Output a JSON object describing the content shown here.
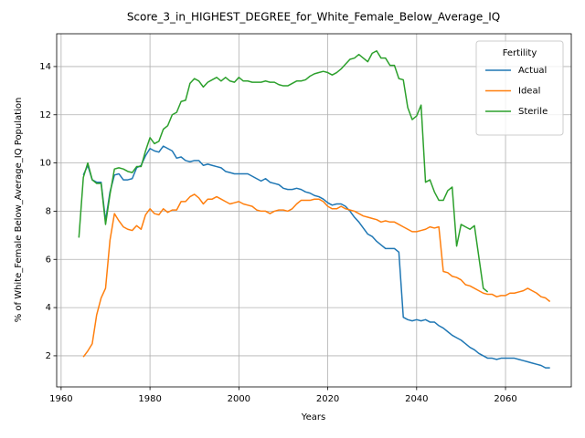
{
  "chart_data": {
    "type": "line",
    "title": "Score_3_in_HIGHEST_DEGREE_for_White_Female_Below_Average_IQ",
    "x_label": "Years",
    "y_label": "% of White_Female Below_Average_IQ Population",
    "legend_title": "Fertility",
    "legend_position": "upper right",
    "grid": true,
    "xlim": [
      1959,
      2074.8
    ],
    "ylim": [
      0.71,
      15.36
    ],
    "xticks": [
      1960,
      1980,
      2000,
      2020,
      2040,
      2060
    ],
    "yticks": [
      2,
      4,
      6,
      8,
      10,
      12,
      14
    ],
    "x": [
      1964,
      1965,
      1966,
      1967,
      1968,
      1969,
      1970,
      1971,
      1972,
      1973,
      1974,
      1975,
      1976,
      1977,
      1978,
      1979,
      1980,
      1981,
      1982,
      1983,
      1984,
      1985,
      1986,
      1987,
      1988,
      1989,
      1990,
      1991,
      1992,
      1993,
      1994,
      1995,
      1996,
      1997,
      1998,
      1999,
      2000,
      2001,
      2002,
      2003,
      2004,
      2005,
      2006,
      2007,
      2008,
      2009,
      2010,
      2011,
      2012,
      2013,
      2014,
      2015,
      2016,
      2017,
      2018,
      2019,
      2020,
      2021,
      2022,
      2023,
      2024,
      2025,
      2026,
      2027,
      2028,
      2029,
      2030,
      2031,
      2032,
      2033,
      2034,
      2035,
      2036,
      2037,
      2038,
      2039,
      2040,
      2041,
      2042,
      2043,
      2044,
      2045,
      2046,
      2047,
      2048,
      2049,
      2050,
      2051,
      2052,
      2053,
      2054,
      2055,
      2056,
      2057,
      2058,
      2059,
      2060,
      2061,
      2062,
      2063,
      2064,
      2065,
      2066,
      2067,
      2068,
      2069,
      2070
    ],
    "series": [
      {
        "name": "Actual",
        "color": "#1f77b4",
        "values": [
          null,
          9.5,
          9.9,
          9.3,
          9.2,
          9.2,
          7.6,
          8.8,
          9.5,
          9.55,
          9.3,
          9.3,
          9.35,
          9.8,
          9.9,
          10.3,
          10.6,
          10.5,
          10.45,
          10.7,
          10.6,
          10.5,
          10.2,
          10.25,
          10.1,
          10.05,
          10.1,
          10.1,
          9.9,
          9.95,
          9.9,
          9.85,
          9.8,
          9.65,
          9.6,
          9.55,
          9.55,
          9.55,
          9.55,
          9.45,
          9.35,
          9.25,
          9.35,
          9.2,
          9.15,
          9.1,
          8.95,
          8.9,
          8.9,
          8.95,
          8.9,
          8.8,
          8.75,
          8.65,
          8.6,
          8.5,
          8.35,
          8.25,
          8.3,
          8.3,
          8.2,
          8.0,
          7.75,
          7.55,
          7.3,
          7.05,
          6.95,
          6.75,
          6.6,
          6.45,
          6.45,
          6.45,
          6.3,
          3.6,
          3.5,
          3.45,
          3.5,
          3.45,
          3.5,
          3.4,
          3.4,
          3.25,
          3.15,
          3.0,
          2.85,
          2.75,
          2.65,
          2.5,
          2.35,
          2.25,
          2.1,
          2.0,
          1.9,
          1.9,
          1.85,
          1.9,
          1.9,
          1.9,
          1.9,
          1.85,
          1.8,
          1.75,
          1.7,
          1.65,
          1.6,
          1.5,
          1.5
        ]
      },
      {
        "name": "Ideal",
        "color": "#ff7f0e",
        "values": [
          null,
          1.95,
          2.2,
          2.5,
          3.7,
          4.4,
          4.8,
          6.8,
          7.9,
          7.6,
          7.35,
          7.25,
          7.2,
          7.4,
          7.25,
          7.85,
          8.1,
          7.9,
          7.85,
          8.1,
          7.95,
          8.05,
          8.05,
          8.4,
          8.4,
          8.6,
          8.7,
          8.55,
          8.3,
          8.5,
          8.5,
          8.6,
          8.5,
          8.4,
          8.3,
          8.35,
          8.4,
          8.3,
          8.25,
          8.2,
          8.05,
          8.0,
          8.0,
          7.9,
          8.0,
          8.05,
          8.05,
          8.0,
          8.1,
          8.3,
          8.45,
          8.45,
          8.45,
          8.5,
          8.5,
          8.4,
          8.2,
          8.1,
          8.1,
          8.2,
          8.1,
          8.05,
          8.0,
          7.9,
          7.8,
          7.75,
          7.7,
          7.65,
          7.55,
          7.6,
          7.55,
          7.55,
          7.45,
          7.35,
          7.25,
          7.15,
          7.15,
          7.2,
          7.25,
          7.35,
          7.3,
          7.35,
          5.5,
          5.45,
          5.3,
          5.25,
          5.15,
          4.95,
          4.9,
          4.8,
          4.7,
          4.6,
          4.55,
          4.55,
          4.45,
          4.5,
          4.5,
          4.6,
          4.6,
          4.65,
          4.7,
          4.8,
          4.7,
          4.6,
          4.45,
          4.4,
          4.25
        ]
      },
      {
        "name": "Sterile",
        "color": "#2ca02c",
        "values": [
          6.9,
          9.4,
          10.0,
          9.3,
          9.15,
          9.15,
          7.45,
          8.7,
          9.75,
          9.8,
          9.75,
          9.65,
          9.6,
          9.85,
          9.85,
          10.5,
          11.05,
          10.8,
          10.9,
          11.4,
          11.55,
          12.0,
          12.1,
          12.55,
          12.6,
          13.3,
          13.5,
          13.4,
          13.15,
          13.35,
          13.45,
          13.55,
          13.4,
          13.55,
          13.4,
          13.35,
          13.55,
          13.4,
          13.4,
          13.35,
          13.35,
          13.35,
          13.4,
          13.35,
          13.35,
          13.25,
          13.2,
          13.2,
          13.3,
          13.4,
          13.4,
          13.45,
          13.6,
          13.7,
          13.75,
          13.8,
          13.75,
          13.65,
          13.75,
          13.9,
          14.1,
          14.3,
          14.35,
          14.5,
          14.35,
          14.2,
          14.55,
          14.65,
          14.35,
          14.35,
          14.05,
          14.05,
          13.5,
          13.45,
          12.3,
          11.8,
          11.95,
          12.4,
          9.2,
          9.3,
          8.8,
          8.45,
          8.45,
          8.85,
          9.0,
          6.55,
          7.45,
          7.35,
          7.25,
          7.4,
          6.1,
          4.8,
          4.65,
          null,
          null,
          null,
          null,
          null,
          null,
          null,
          null,
          null,
          null,
          null,
          null,
          null,
          null
        ]
      }
    ]
  }
}
